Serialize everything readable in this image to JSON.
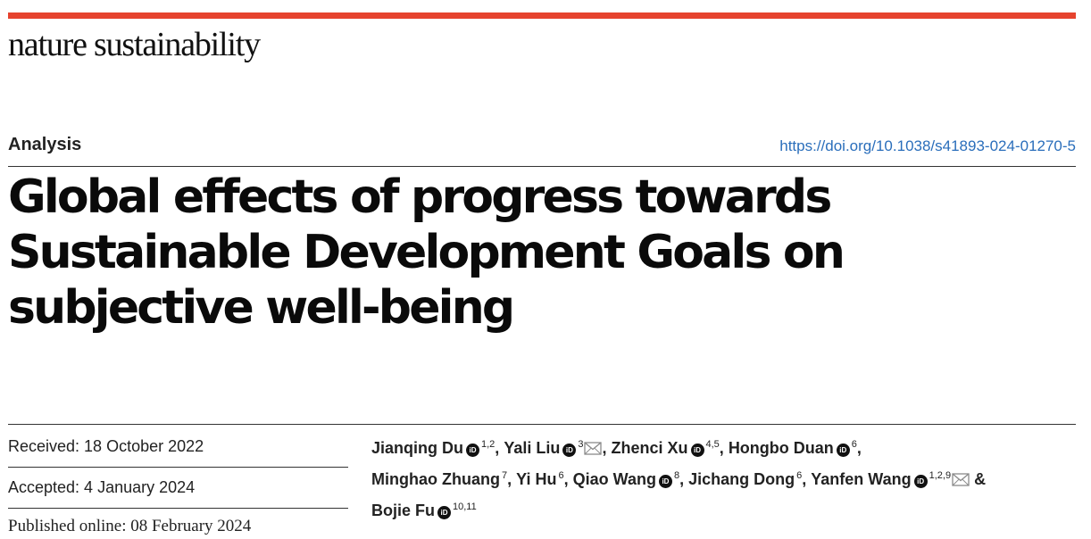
{
  "journal": {
    "name": "nature sustainability",
    "accent_color": "#e6432e"
  },
  "article": {
    "type": "Analysis",
    "doi": "https://doi.org/10.1038/s41893-024-01270-5",
    "title_lines": [
      "Global effects of progress towards",
      "Sustainable Development Goals on",
      "subjective well-being"
    ]
  },
  "dates": {
    "received": "Received: 18 October 2022",
    "accepted": "Accepted: 4 January 2024",
    "published": "Published online: 08 February 2024"
  },
  "authors": [
    {
      "name": "Jianqing Du",
      "affil": "1,2",
      "orcid": true,
      "email": false,
      "sep": ", "
    },
    {
      "name": "Yali Liu",
      "affil": "3",
      "orcid": true,
      "email": true,
      "sep": ", "
    },
    {
      "name": "Zhenci Xu",
      "affil": "4,5",
      "orcid": true,
      "email": false,
      "sep": ", "
    },
    {
      "name": "Hongbo Duan",
      "affil": "6",
      "orcid": true,
      "email": false,
      "sep": ","
    },
    {
      "name": "Minghao Zhuang",
      "affil": "7",
      "orcid": false,
      "email": false,
      "sep": ", "
    },
    {
      "name": "Yi Hu",
      "affil": "6",
      "orcid": false,
      "email": false,
      "sep": ", "
    },
    {
      "name": "Qiao Wang",
      "affil": "8",
      "orcid": true,
      "email": false,
      "sep": ", "
    },
    {
      "name": "Jichang Dong",
      "affil": "6",
      "orcid": false,
      "email": false,
      "sep": ", "
    },
    {
      "name": "Yanfen Wang",
      "affil": "1,2,9",
      "orcid": true,
      "email": true,
      "sep": " &"
    },
    {
      "name": "Bojie Fu",
      "affil": "10,11",
      "orcid": true,
      "email": false,
      "sep": ""
    }
  ],
  "icons": {
    "orcid_label": "iD",
    "orcid": "orcid-icon",
    "email": "envelope-icon"
  }
}
